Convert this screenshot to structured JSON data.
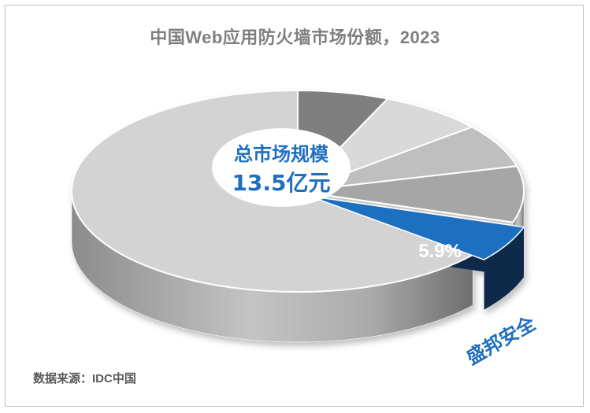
{
  "title": "中国Web应用防火墙市场份额，2023",
  "source": "数据来源：IDC中国",
  "center_label": {
    "line1": "总市场规模",
    "line2": "13.5亿元"
  },
  "highlight": {
    "value_label": "5.9%",
    "name": "盛邦安全",
    "color": "#1f6fbf",
    "side_color": "#0f2b4a"
  },
  "chart_data": {
    "type": "pie",
    "title": "中国Web应用防火墙市场份额，2023",
    "total_market": "13.5亿元",
    "slices": [
      {
        "name": "",
        "value": 6.5
      },
      {
        "name": "",
        "value": 7.5
      },
      {
        "name": "",
        "value": 7.0
      },
      {
        "name": "",
        "value": 9.0
      },
      {
        "name": "盛邦安全",
        "value": 5.9,
        "label": "5.9%"
      },
      {
        "name": "",
        "value": 64.1
      }
    ],
    "colors": [
      "#7f7f7f",
      "#d9d9d9",
      "#bfbfbf",
      "#a6a6a6",
      "#1f6fbf",
      "#d3d3d3"
    ],
    "highlight_color": "#1f6fbf",
    "legend": "none"
  }
}
